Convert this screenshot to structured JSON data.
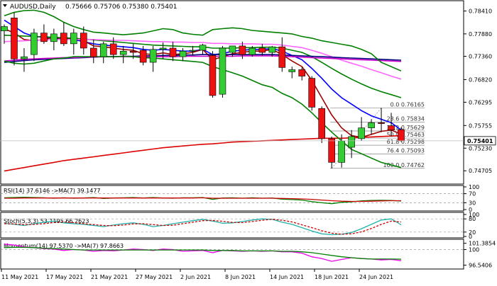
{
  "header": {
    "symbol_label": "AUDUSD,Daily",
    "ohlc_text": "0.75666 0.75706 0.75380 0.75401",
    "collapse_icon": "triangle-down-icon"
  },
  "chart_data": [
    {
      "type": "candlestick",
      "title": "AUDUSD,Daily",
      "ylim": [
        0.7443,
        0.786
      ],
      "y_ticks": [
        "0.78410",
        "0.77880",
        "0.77360",
        "0.76820",
        "0.76295",
        "0.75755",
        "0.75230",
        "0.74705"
      ],
      "current_price": "0.75401",
      "x_ticks": [
        "11 May 2021",
        "17 May 2021",
        "21 May 2021",
        "27 May 2021",
        "2 Jun 2021",
        "8 Jun 2021",
        "14 Jun 2021",
        "18 Jun 2021",
        "24 Jun 2021"
      ],
      "candles": [
        {
          "o": 0.7795,
          "h": 0.781,
          "l": 0.7765,
          "c": 0.7805
        },
        {
          "o": 0.7825,
          "h": 0.7838,
          "l": 0.7715,
          "c": 0.773
        },
        {
          "o": 0.773,
          "h": 0.7755,
          "l": 0.77,
          "c": 0.7735
        },
        {
          "o": 0.774,
          "h": 0.78,
          "l": 0.7725,
          "c": 0.779
        },
        {
          "o": 0.779,
          "h": 0.781,
          "l": 0.7765,
          "c": 0.777
        },
        {
          "o": 0.777,
          "h": 0.78,
          "l": 0.775,
          "c": 0.7788
        },
        {
          "o": 0.779,
          "h": 0.7815,
          "l": 0.776,
          "c": 0.7765
        },
        {
          "o": 0.7765,
          "h": 0.78,
          "l": 0.774,
          "c": 0.779
        },
        {
          "o": 0.779,
          "h": 0.7805,
          "l": 0.774,
          "c": 0.7755
        },
        {
          "o": 0.7755,
          "h": 0.7775,
          "l": 0.772,
          "c": 0.7735
        },
        {
          "o": 0.7735,
          "h": 0.777,
          "l": 0.772,
          "c": 0.7765
        },
        {
          "o": 0.7765,
          "h": 0.778,
          "l": 0.773,
          "c": 0.774
        },
        {
          "o": 0.774,
          "h": 0.776,
          "l": 0.772,
          "c": 0.7748
        },
        {
          "o": 0.7748,
          "h": 0.7765,
          "l": 0.773,
          "c": 0.7745
        },
        {
          "o": 0.775,
          "h": 0.776,
          "l": 0.7715,
          "c": 0.7722
        },
        {
          "o": 0.7722,
          "h": 0.776,
          "l": 0.77,
          "c": 0.7752
        },
        {
          "o": 0.7752,
          "h": 0.7768,
          "l": 0.773,
          "c": 0.7755
        },
        {
          "o": 0.7755,
          "h": 0.777,
          "l": 0.7725,
          "c": 0.7735
        },
        {
          "o": 0.7735,
          "h": 0.7755,
          "l": 0.7725,
          "c": 0.7748
        },
        {
          "o": 0.7748,
          "h": 0.776,
          "l": 0.7738,
          "c": 0.775
        },
        {
          "o": 0.775,
          "h": 0.7765,
          "l": 0.774,
          "c": 0.7762
        },
        {
          "o": 0.7738,
          "h": 0.7748,
          "l": 0.764,
          "c": 0.7645
        },
        {
          "o": 0.7648,
          "h": 0.776,
          "l": 0.764,
          "c": 0.7755
        },
        {
          "o": 0.7745,
          "h": 0.776,
          "l": 0.7735,
          "c": 0.776
        },
        {
          "o": 0.776,
          "h": 0.777,
          "l": 0.773,
          "c": 0.774
        },
        {
          "o": 0.774,
          "h": 0.776,
          "l": 0.7735,
          "c": 0.7755
        },
        {
          "o": 0.7755,
          "h": 0.7765,
          "l": 0.7738,
          "c": 0.7745
        },
        {
          "o": 0.7745,
          "h": 0.776,
          "l": 0.7735,
          "c": 0.7758
        },
        {
          "o": 0.7758,
          "h": 0.778,
          "l": 0.77,
          "c": 0.771
        },
        {
          "o": 0.77,
          "h": 0.7712,
          "l": 0.7685,
          "c": 0.7705
        },
        {
          "o": 0.7705,
          "h": 0.771,
          "l": 0.768,
          "c": 0.769
        },
        {
          "o": 0.7685,
          "h": 0.769,
          "l": 0.761,
          "c": 0.7618
        },
        {
          "o": 0.7615,
          "h": 0.762,
          "l": 0.7535,
          "c": 0.7545
        },
        {
          "o": 0.7545,
          "h": 0.755,
          "l": 0.7476,
          "c": 0.749
        },
        {
          "o": 0.749,
          "h": 0.7555,
          "l": 0.7478,
          "c": 0.754
        },
        {
          "o": 0.7525,
          "h": 0.7565,
          "l": 0.75,
          "c": 0.755
        },
        {
          "o": 0.7545,
          "h": 0.7595,
          "l": 0.754,
          "c": 0.757
        },
        {
          "o": 0.757,
          "h": 0.759,
          "l": 0.7555,
          "c": 0.7582
        },
        {
          "o": 0.7582,
          "h": 0.7616,
          "l": 0.756,
          "c": 0.758
        },
        {
          "o": 0.7575,
          "h": 0.7605,
          "l": 0.755,
          "c": 0.7565
        },
        {
          "o": 0.7566,
          "h": 0.7571,
          "l": 0.7538,
          "c": 0.754
        }
      ],
      "series": [
        {
          "color": "#0000ff",
          "values": [
            0.782,
            0.7805,
            0.779,
            0.7782,
            0.778,
            0.7778,
            0.7776,
            0.7775,
            0.777,
            0.7765,
            0.7762,
            0.776,
            0.7758,
            0.7756,
            0.7752,
            0.775,
            0.7752,
            0.775,
            0.7748,
            0.7748,
            0.7752,
            0.774,
            0.7742,
            0.7748,
            0.775,
            0.7752,
            0.7752,
            0.7754,
            0.7748,
            0.7738,
            0.7728,
            0.7708,
            0.7685,
            0.766,
            0.764,
            0.7625,
            0.761,
            0.7598,
            0.759,
            0.7582,
            0.7565
          ]
        },
        {
          "color": "#a00000",
          "values": [
            0.78,
            0.779,
            0.7775,
            0.7772,
            0.7775,
            0.778,
            0.7776,
            0.7778,
            0.7772,
            0.776,
            0.7758,
            0.7755,
            0.7752,
            0.775,
            0.7742,
            0.774,
            0.7744,
            0.774,
            0.7742,
            0.7745,
            0.7752,
            0.7728,
            0.7735,
            0.7742,
            0.7745,
            0.7748,
            0.7748,
            0.7752,
            0.774,
            0.7725,
            0.7712,
            0.768,
            0.764,
            0.76,
            0.757,
            0.7552,
            0.7548,
            0.7555,
            0.7562,
            0.7565,
            0.7555
          ]
        },
        {
          "color": "#008000",
          "values": [
            0.7785,
            0.7784,
            0.7783,
            0.7782,
            0.7781,
            0.778,
            0.7779,
            0.7778,
            0.7776,
            0.7774,
            0.7772,
            0.777,
            0.7768,
            0.7766,
            0.7764,
            0.7762,
            0.7761,
            0.776,
            0.7759,
            0.7758,
            0.7758,
            0.7755,
            0.7755,
            0.7755,
            0.7756,
            0.7756,
            0.7757,
            0.7757,
            0.7755,
            0.775,
            0.7745,
            0.7735,
            0.7722,
            0.7708,
            0.7695,
            0.7683,
            0.7672,
            0.7662,
            0.7654,
            0.7647,
            0.764
          ]
        },
        {
          "color": "#ff66ff",
          "values": [
            0.777,
            0.7771,
            0.7772,
            0.7773,
            0.7774,
            0.7775,
            0.7775,
            0.7775,
            0.7775,
            0.7775,
            0.7774,
            0.7773,
            0.7773,
            0.7772,
            0.7771,
            0.777,
            0.777,
            0.7769,
            0.7769,
            0.7768,
            0.7768,
            0.7766,
            0.7766,
            0.7765,
            0.7765,
            0.7765,
            0.7764,
            0.7764,
            0.7762,
            0.7759,
            0.7756,
            0.775,
            0.7743,
            0.7735,
            0.7727,
            0.772,
            0.7713,
            0.7705,
            0.7698,
            0.769,
            0.7683
          ]
        },
        {
          "color": "#000080",
          "values": [
            0.7722,
            0.7724,
            0.7726,
            0.7728,
            0.7729,
            0.773,
            0.7731,
            0.7732,
            0.7733,
            0.7734,
            0.7735,
            0.7735,
            0.7736,
            0.7736,
            0.7737,
            0.7737,
            0.7738,
            0.7738,
            0.7739,
            0.7739,
            0.774,
            0.774,
            0.774,
            0.774,
            0.774,
            0.774,
            0.774,
            0.774,
            0.7739,
            0.7738,
            0.7737,
            0.7736,
            0.7735,
            0.7734,
            0.7733,
            0.7732,
            0.7731,
            0.773,
            0.7729,
            0.7728,
            0.7727
          ]
        },
        {
          "color": "#cc00cc",
          "values": [
            0.7725,
            0.7727,
            0.7729,
            0.773,
            0.7731,
            0.7732,
            0.7733,
            0.7733,
            0.7734,
            0.7734,
            0.7735,
            0.7735,
            0.7735,
            0.7735,
            0.7735,
            0.7735,
            0.7735,
            0.7735,
            0.7736,
            0.7736,
            0.7736,
            0.7736,
            0.7736,
            0.7736,
            0.7737,
            0.7737,
            0.7737,
            0.7737,
            0.7736,
            0.7735,
            0.7734,
            0.7733,
            0.7732,
            0.7731,
            0.773,
            0.7729,
            0.7728,
            0.7727,
            0.7726,
            0.7725,
            0.7724
          ]
        },
        {
          "color": "#dd0000",
          "values": [
            0.747,
            0.7474,
            0.7478,
            0.7482,
            0.7486,
            0.749,
            0.7494,
            0.7497,
            0.75,
            0.7503,
            0.7506,
            0.7509,
            0.7512,
            0.7515,
            0.7518,
            0.7521,
            0.7524,
            0.7526,
            0.7528,
            0.753,
            0.7532,
            0.7533,
            0.7535,
            0.7537,
            0.7538,
            0.7539,
            0.754,
            0.7541,
            0.7542,
            0.7543,
            0.7544,
            0.7545,
            0.7546,
            0.7546,
            0.7546,
            0.7547,
            0.7548,
            0.7549,
            0.755,
            0.7551,
            0.7552
          ]
        },
        {
          "color": "#008000",
          "values": [
            0.783,
            0.7838,
            0.7842,
            0.7843,
            0.7838,
            0.7828,
            0.7815,
            0.7805,
            0.7798,
            0.7792,
            0.779,
            0.7788,
            0.7786,
            0.7788,
            0.779,
            0.7795,
            0.78,
            0.7798,
            0.779,
            0.7787,
            0.7785,
            0.7798,
            0.78,
            0.7802,
            0.78,
            0.7796,
            0.7794,
            0.7792,
            0.779,
            0.7788,
            0.7782,
            0.7778,
            0.7772,
            0.7768,
            0.7764,
            0.776,
            0.7752,
            0.7742,
            0.7722,
            0.7712,
            0.7702
          ]
        },
        {
          "color": "#008000",
          "values": [
            0.7725,
            0.772,
            0.7718,
            0.772,
            0.7725,
            0.773,
            0.7732,
            0.7735,
            0.7735,
            0.7735,
            0.7735,
            0.7735,
            0.7736,
            0.7735,
            0.7733,
            0.7732,
            0.773,
            0.7728,
            0.7726,
            0.7724,
            0.7722,
            0.7712,
            0.7705,
            0.7698,
            0.769,
            0.768,
            0.767,
            0.7664,
            0.765,
            0.764,
            0.7625,
            0.7605,
            0.7582,
            0.756,
            0.754,
            0.752,
            0.751,
            0.75,
            0.749,
            0.7484,
            0.7478
          ]
        }
      ],
      "fibonacci": [
        {
          "label": "0.0",
          "value": 0.76165
        },
        {
          "label": "23.6",
          "value": 0.75834
        },
        {
          "label": "38.2",
          "value": 0.75629
        },
        {
          "label": "50.0",
          "value": 0.75463
        },
        {
          "label": "61.8",
          "value": 0.75298
        },
        {
          "label": "76.4",
          "value": 0.75093
        },
        {
          "label": "100.0",
          "value": 0.74762
        }
      ]
    },
    {
      "type": "line",
      "title": "RSI(14) 37.6146 ->MA(7) 39.1477",
      "ylim": [
        0,
        100
      ],
      "y_ticks": [
        "100",
        "70",
        "30",
        "0"
      ],
      "levels": [
        70,
        30
      ],
      "series": [
        {
          "color": "#008000",
          "values": [
            52,
            53,
            54,
            53,
            52,
            50,
            52,
            50,
            51,
            53,
            49,
            51,
            52,
            53,
            51,
            53,
            51,
            50,
            52,
            52,
            53,
            45,
            51,
            52,
            50,
            52,
            50,
            51,
            46,
            44,
            42,
            35,
            30,
            26,
            32,
            34,
            38,
            40,
            41,
            40,
            37.6146
          ]
        },
        {
          "color": "#cc0000",
          "values": [
            50,
            50,
            51,
            51,
            51,
            51,
            51,
            51,
            51,
            51,
            51,
            51,
            51,
            51,
            51,
            51,
            51,
            51,
            51,
            51,
            52,
            50,
            50,
            50,
            50,
            50,
            50,
            50,
            49,
            48,
            47,
            45,
            42,
            39,
            37,
            36,
            36,
            37,
            38,
            39,
            39.1477
          ]
        }
      ]
    },
    {
      "type": "line",
      "title": "Stoch(5,3,3) 53.1195 66.2623",
      "ylim": [
        0,
        100
      ],
      "y_ticks": [
        "100",
        "80",
        "20",
        "0"
      ],
      "levels": [
        80,
        20
      ],
      "series": [
        {
          "color": "#20b2aa",
          "values": [
            60,
            55,
            50,
            58,
            65,
            70,
            62,
            58,
            55,
            50,
            45,
            52,
            58,
            62,
            55,
            45,
            50,
            58,
            65,
            72,
            78,
            70,
            60,
            62,
            68,
            75,
            80,
            78,
            65,
            55,
            40,
            25,
            12,
            8,
            10,
            18,
            35,
            55,
            75,
            80,
            53.1195
          ]
        },
        {
          "color": "#cc0000",
          "dash": true,
          "values": [
            58,
            57,
            54,
            55,
            58,
            64,
            66,
            63,
            58,
            54,
            50,
            49,
            52,
            57,
            58,
            54,
            50,
            51,
            58,
            65,
            72,
            73,
            69,
            64,
            63,
            68,
            74,
            78,
            74,
            66,
            53,
            40,
            26,
            15,
            10,
            12,
            21,
            36,
            55,
            70,
            66.2623
          ]
        }
      ]
    },
    {
      "type": "line",
      "title": "Momentum(14) 97.5370 ->MA(7) 97.8663",
      "ylim": [
        96.0,
        101.8
      ],
      "y_ticks": [
        "101.3854",
        "100",
        "96.5406"
      ],
      "levels": [
        100
      ],
      "series": [
        {
          "color": "#ee00ee",
          "values": [
            101.2,
            101.0,
            100.6,
            100.4,
            100.2,
            100.1,
            99.8,
            100.0,
            99.9,
            99.6,
            99.8,
            99.7,
            99.9,
            100.1,
            100.0,
            99.8,
            100.1,
            100.0,
            99.6,
            99.7,
            99.8,
            99.3,
            99.8,
            99.7,
            99.6,
            99.7,
            99.6,
            99.7,
            99.5,
            99.5,
            99.2,
            98.4,
            98.0,
            97.4,
            97.8,
            98.2,
            98.0,
            97.9,
            97.7,
            97.8,
            97.537
          ]
        },
        {
          "color": "#008000",
          "values": [
            100.4,
            100.5,
            100.5,
            100.4,
            100.3,
            100.2,
            100.1,
            100.0,
            99.9,
            99.9,
            99.9,
            99.9,
            99.9,
            99.9,
            99.9,
            99.9,
            99.9,
            99.9,
            99.9,
            99.9,
            99.9,
            99.8,
            99.8,
            99.8,
            99.7,
            99.7,
            99.7,
            99.7,
            99.6,
            99.6,
            99.5,
            99.3,
            99.0,
            98.7,
            98.4,
            98.2,
            98.0,
            97.9,
            97.9,
            97.9,
            97.8663
          ]
        }
      ]
    }
  ]
}
